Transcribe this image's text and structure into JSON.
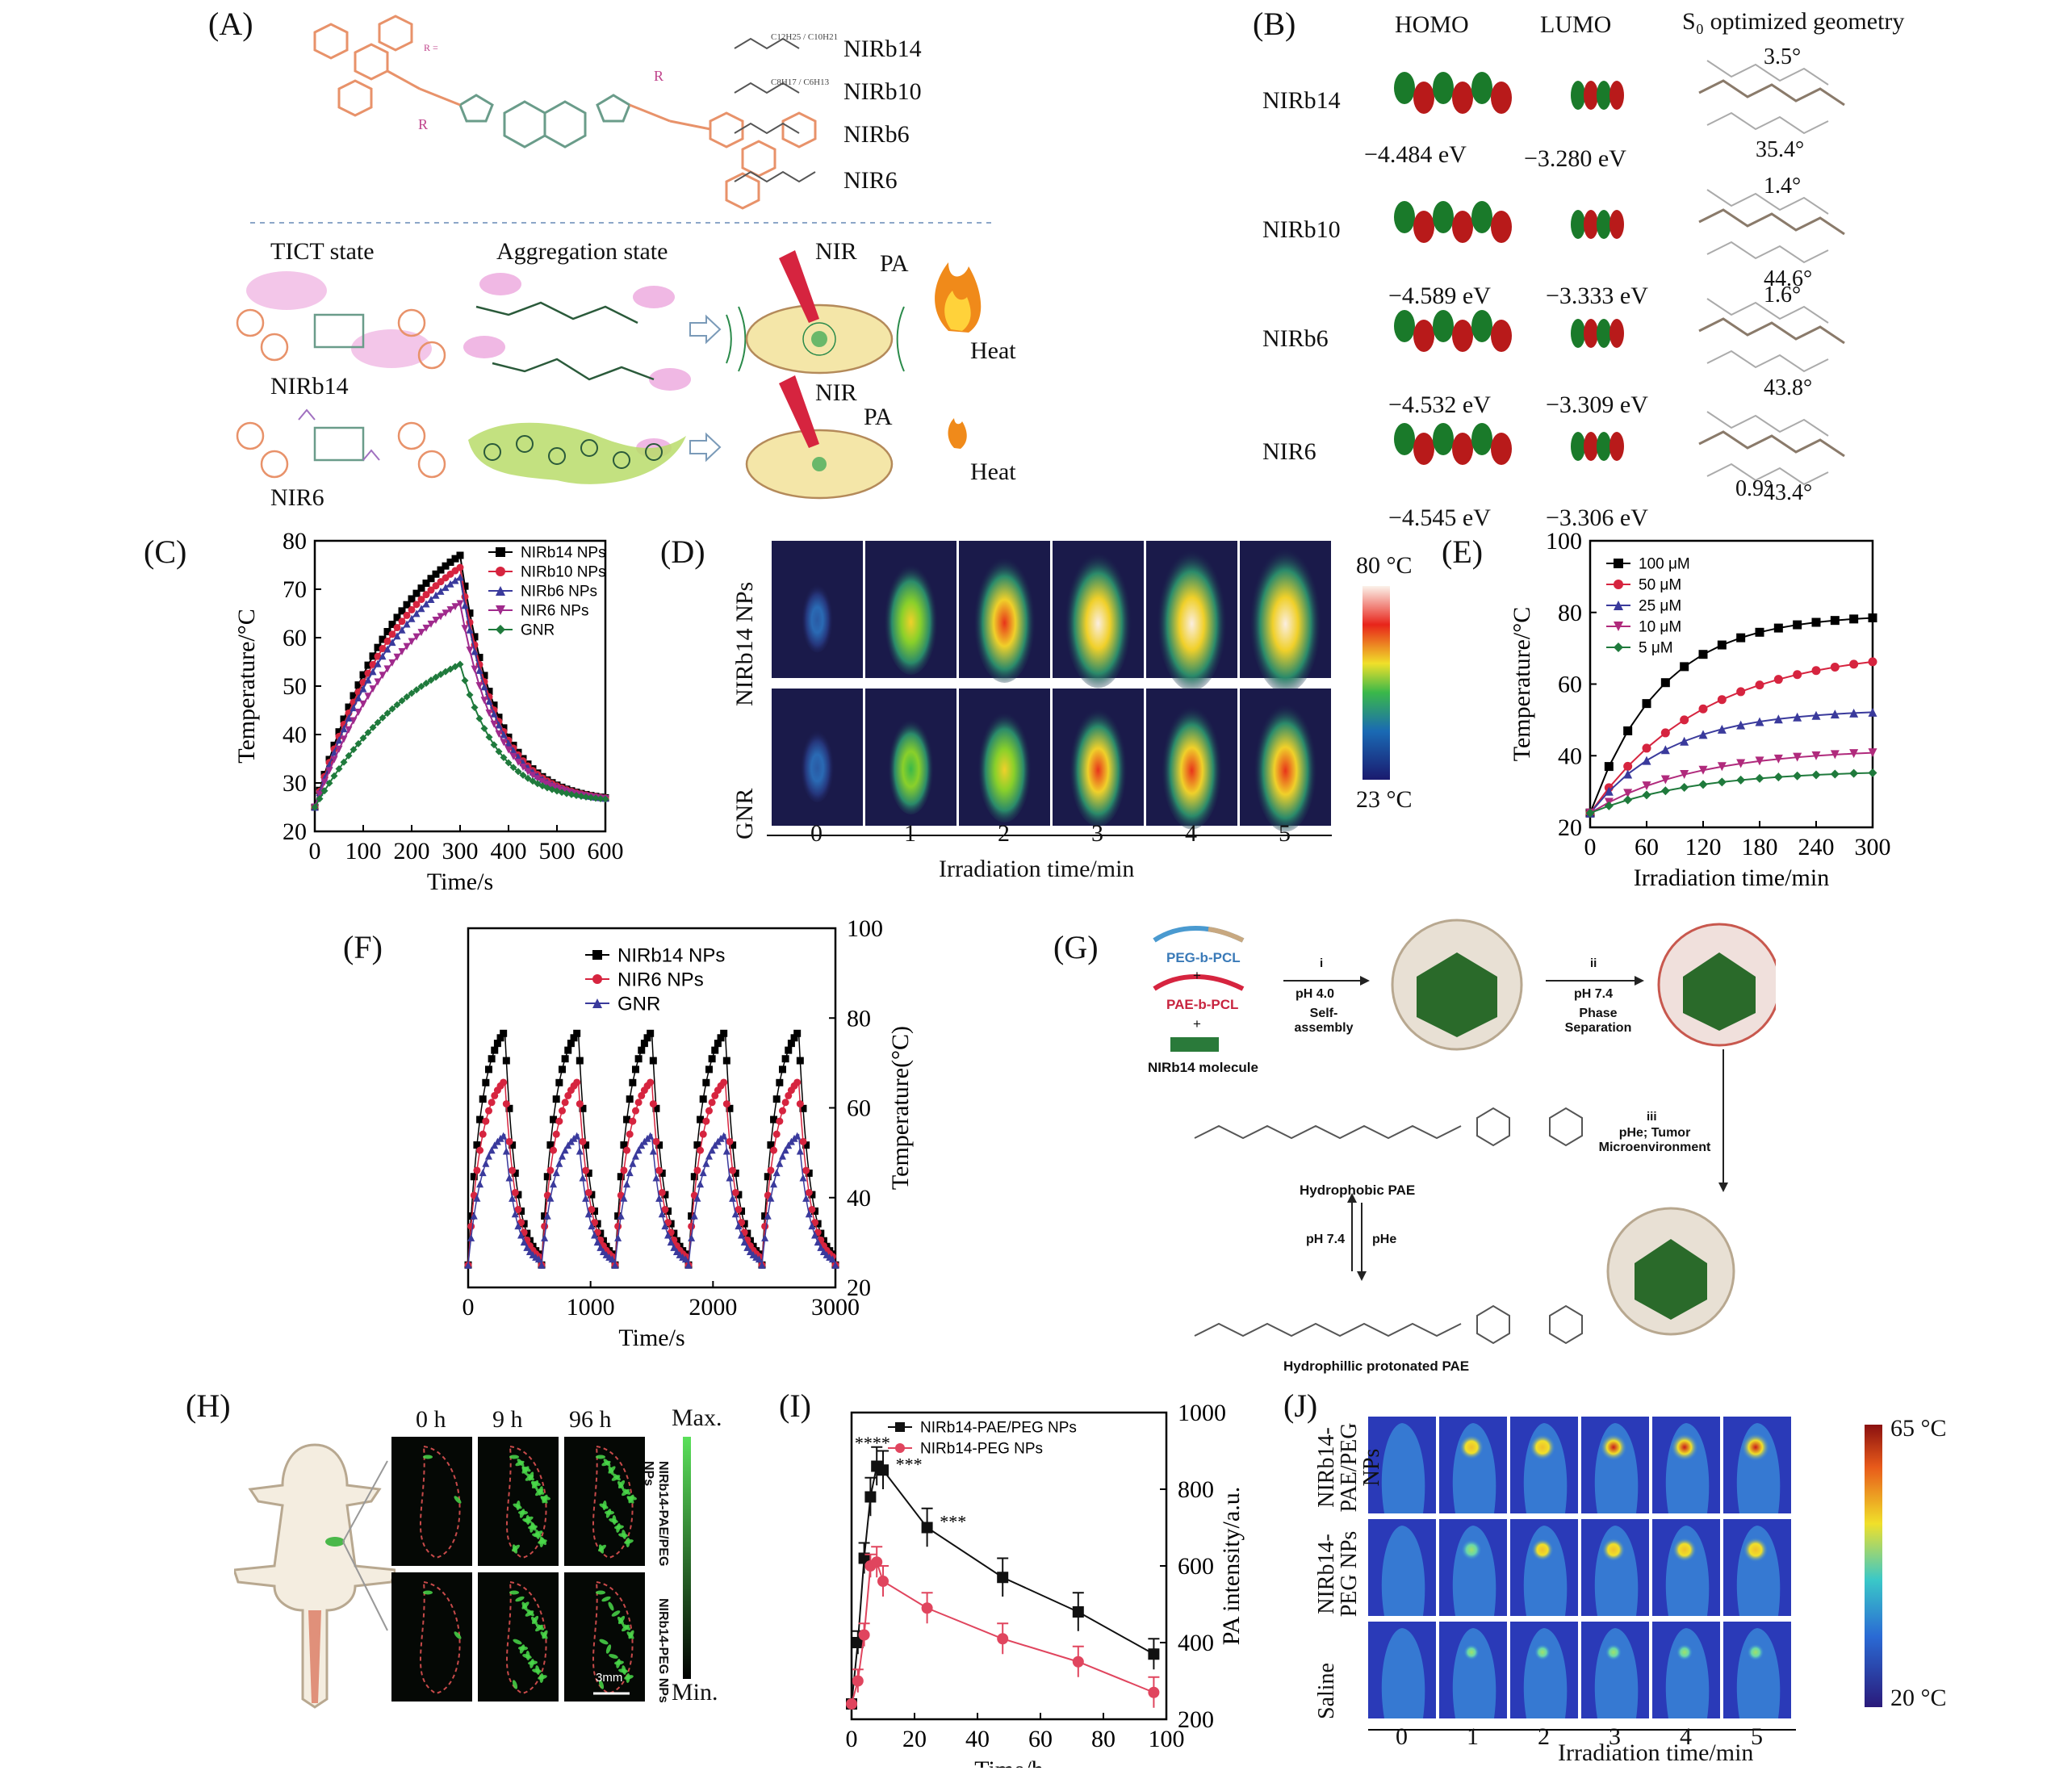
{
  "panels": [
    "(A)",
    "(B)",
    "(C)",
    "(D)",
    "(E)",
    "(F)",
    "(G)",
    "(H)",
    "(I)",
    "(J)"
  ],
  "panelA": {
    "r_label": "R =",
    "side_chain_labels": [
      "NIRb14",
      "NIRb10",
      "NIRb6",
      "NIR6"
    ],
    "side_chain_formulas": [
      "C12H25 / C10H21",
      "C8H17 / C6H13",
      "",
      ""
    ],
    "state_labels": [
      "TICT state",
      "Aggregation state"
    ],
    "molecule_labels": [
      "NIRb14",
      "NIR6"
    ],
    "mouse_labels": [
      "NIR",
      "PA",
      "NIR",
      "PA"
    ],
    "heat_labels": [
      "Heat",
      "Heat"
    ]
  },
  "panelB": {
    "headers": [
      "HOMO",
      "LUMO",
      "S₀ optimized geometry"
    ],
    "rows": [
      {
        "name": "NIRb14",
        "homo": "−4.484 eV",
        "lumo": "−3.280 eV",
        "angle1": "3.5°",
        "angle2": "35.4°"
      },
      {
        "name": "NIRb10",
        "homo": "−4.589 eV",
        "lumo": "−3.333 eV",
        "angle1": "1.4°",
        "angle2": "44.6°"
      },
      {
        "name": "NIRb6",
        "homo": "−4.532 eV",
        "lumo": "−3.309 eV",
        "angle1": "1.6°",
        "angle2": "43.8°"
      },
      {
        "name": "NIR6",
        "homo": "−4.545 eV",
        "lumo": "−3.306 eV",
        "angle1": "0.9°",
        "angle2": "43.4°"
      }
    ]
  },
  "panelD": {
    "row_labels": [
      "NIRb14 NPs",
      "GNR"
    ],
    "time_ticks": [
      "0",
      "1",
      "2",
      "3",
      "4",
      "5"
    ],
    "xlabel": "Irradiation time/min",
    "scale_max": "80 °C",
    "scale_min": "23 °C",
    "intensity": [
      [
        0.0,
        0.55,
        0.75,
        0.88,
        0.95,
        1.0
      ],
      [
        0.05,
        0.35,
        0.55,
        0.65,
        0.72,
        0.78
      ]
    ]
  },
  "panelG": {
    "labels": {
      "peg": "PEG-b-PCL",
      "pae": "PAE-b-PCL",
      "plus": "+",
      "nir": "NIRb14 molecule",
      "step1_roman": "i",
      "step1_ph": "pH 4.0",
      "step1_desc": "Self-assembly",
      "step2_roman": "ii",
      "step2_ph": "pH 7.4",
      "step2_desc": "Phase Separation",
      "step3_roman": "iii",
      "step3_desc": "pHe; Tumor Microenvironment",
      "hydrophobic": "Hydrophobic PAE",
      "ph74": "pH 7.4",
      "phe": "pHe",
      "hydrophilic": "Hydrophillic protonated PAE"
    }
  },
  "panelH": {
    "times": [
      "0 h",
      "9 h",
      "96 h"
    ],
    "rows": [
      "NIRb14-PAE/PEG NPs",
      "NIRb14-PEG NPs"
    ],
    "scale_max": "Max.",
    "scale_min": "Min.",
    "scalebar": "3mm",
    "intensity": [
      [
        0.05,
        0.9,
        0.7
      ],
      [
        0.05,
        0.6,
        0.5
      ]
    ]
  },
  "panelJ": {
    "rows": [
      "NIRb14-PAE/PEG NPs",
      "NIRb14-PEG NPs",
      "Saline"
    ],
    "time_ticks": [
      "0",
      "1",
      "2",
      "3",
      "4",
      "5"
    ],
    "xlabel": "Irradiation time/min",
    "scale_max": "65 °C",
    "scale_min": "20 °C",
    "spot": [
      [
        0.0,
        0.7,
        0.78,
        0.84,
        0.88,
        0.92
      ],
      [
        0.0,
        0.45,
        0.55,
        0.62,
        0.67,
        0.72
      ],
      [
        0.0,
        0.15,
        0.18,
        0.2,
        0.2,
        0.22
      ]
    ]
  },
  "chart_data": [
    {
      "id": "C",
      "type": "line",
      "xlabel": "Time/s",
      "ylabel": "Temperature/°C",
      "xlim": [
        0,
        600
      ],
      "ylim": [
        20,
        80
      ],
      "xticks": [
        0,
        100,
        200,
        300,
        400,
        500,
        600
      ],
      "yticks": [
        20,
        30,
        40,
        50,
        60,
        70,
        80
      ],
      "legend_position": "top-right",
      "series": [
        {
          "name": "NIRb14 NPs",
          "color": "#000000",
          "marker": "square",
          "peak": 77,
          "tau_heat": 180,
          "tau_cool": 75,
          "start": 25
        },
        {
          "name": "NIRb10 NPs",
          "color": "#d6243f",
          "marker": "circle",
          "peak": 74.5,
          "tau_heat": 185,
          "tau_cool": 75,
          "start": 25
        },
        {
          "name": "NIRb6 NPs",
          "color": "#3a3a9c",
          "marker": "triangle",
          "peak": 72.5,
          "tau_heat": 190,
          "tau_cool": 75,
          "start": 25
        },
        {
          "name": "NIR6 NPs",
          "color": "#a02a8c",
          "marker": "triangle-down",
          "peak": 67,
          "tau_heat": 200,
          "tau_cool": 75,
          "start": 25
        },
        {
          "name": "GNR",
          "color": "#1f7a3c",
          "marker": "diamond",
          "peak": 54.5,
          "tau_heat": 230,
          "tau_cool": 80,
          "start": 25
        }
      ]
    },
    {
      "id": "E",
      "type": "line",
      "xlabel": "Irradiation time/min",
      "ylabel": "Temperature/°C",
      "xlim": [
        0,
        300
      ],
      "ylim": [
        20,
        100
      ],
      "xticks": [
        0,
        60,
        120,
        180,
        240,
        300
      ],
      "yticks": [
        20,
        40,
        60,
        80,
        100
      ],
      "legend_position": "top-left",
      "series": [
        {
          "name": "100 μM",
          "color": "#000000",
          "marker": "square",
          "plateau": 79.5,
          "tau": 75
        },
        {
          "name": "50 μM",
          "color": "#d6243f",
          "marker": "circle",
          "plateau": 70,
          "tau": 120
        },
        {
          "name": "25 μM",
          "color": "#3a3a9c",
          "marker": "triangle",
          "plateau": 53,
          "tau": 85
        },
        {
          "name": "10 μM",
          "color": "#b02a7c",
          "marker": "triangle-down",
          "plateau": 42,
          "tau": 110
        },
        {
          "name": "5 μM",
          "color": "#1f7a3c",
          "marker": "diamond",
          "plateau": 36,
          "tau": 110
        }
      ],
      "start": 24
    },
    {
      "id": "F",
      "type": "line",
      "xlabel": "Time/s",
      "ylabel": "Temperature(°C)",
      "xlim": [
        0,
        3000
      ],
      "ylim": [
        20,
        100
      ],
      "xticks": [
        0,
        1000,
        2000,
        3000
      ],
      "yticks": [
        20,
        40,
        60,
        80,
        100
      ],
      "legend_position": "top-left",
      "cycles": 5,
      "cycle_length": 600,
      "series": [
        {
          "name": "NIRb14 NPs",
          "color": "#000000",
          "marker": "square",
          "peak": 77
        },
        {
          "name": "NIR6 NPs",
          "color": "#d6243f",
          "marker": "circle",
          "peak": 66
        },
        {
          "name": "GNR",
          "color": "#3a3a9c",
          "marker": "triangle",
          "peak": 54
        }
      ],
      "start": 25
    },
    {
      "id": "I",
      "type": "line",
      "xlabel": "Time/h",
      "ylabel": "PA intensity/a.u.",
      "xlim": [
        0,
        100
      ],
      "ylim": [
        200,
        1000
      ],
      "xticks": [
        0,
        20,
        40,
        60,
        80,
        100
      ],
      "yticks": [
        200,
        400,
        600,
        800,
        1000
      ],
      "legend_position": "top-right",
      "series": [
        {
          "name": "NIRb14-PAE/PEG NPs",
          "color": "#111111",
          "marker": "square",
          "x": [
            0,
            2,
            4,
            6,
            8,
            10,
            24,
            48,
            72,
            96
          ],
          "y": [
            240,
            400,
            620,
            780,
            860,
            850,
            700,
            570,
            480,
            370
          ],
          "err": [
            0,
            30,
            40,
            50,
            50,
            50,
            50,
            50,
            50,
            40
          ]
        },
        {
          "name": "NIRb14-PEG NPs",
          "color": "#e0455e",
          "marker": "circle",
          "x": [
            0,
            2,
            4,
            6,
            8,
            10,
            24,
            48,
            72,
            96
          ],
          "y": [
            240,
            300,
            420,
            600,
            610,
            560,
            490,
            410,
            350,
            270
          ],
          "err": [
            0,
            30,
            30,
            30,
            40,
            40,
            40,
            40,
            40,
            40
          ]
        }
      ],
      "annotations": [
        "****",
        "***",
        "***"
      ]
    }
  ]
}
